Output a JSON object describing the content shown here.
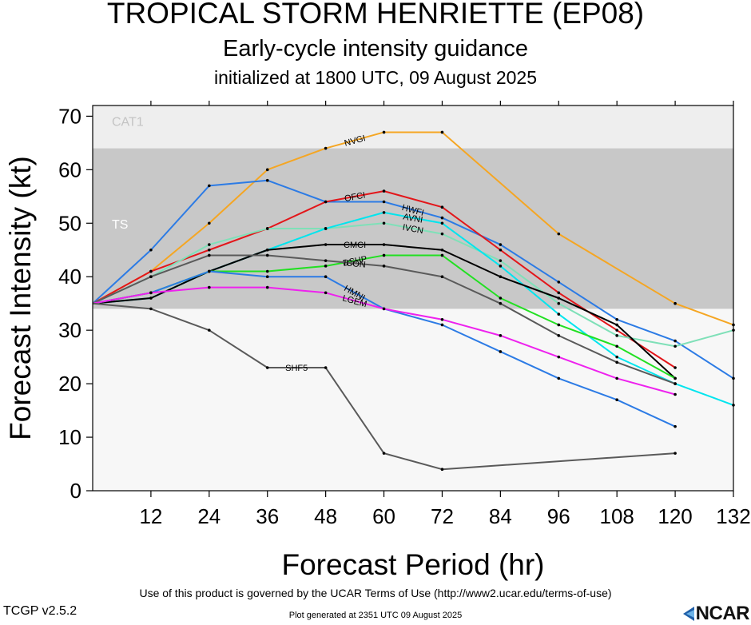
{
  "header": {
    "title": "TROPICAL STORM HENRIETTE (EP08)",
    "subtitle": "Early-cycle intensity guidance",
    "init": "initialized at 1800 UTC, 09 August 2025"
  },
  "footer": {
    "terms": "Use of this product is governed by the UCAR Terms of Use (http://www2.ucar.edu/terms-of-use)",
    "version": "TCGP v2.5.2",
    "generated": "Plot generated at 2351 UTC   09 August 2025",
    "logo": "NCAR"
  },
  "chart_data": {
    "type": "line",
    "xlabel": "Forecast Period (hr)",
    "ylabel": "Forecast Intensity (kt)",
    "xlim": [
      0,
      132
    ],
    "ylim": [
      0,
      72
    ],
    "xticks": [
      12,
      24,
      36,
      48,
      60,
      72,
      84,
      96,
      108,
      120,
      132
    ],
    "yticks": [
      0,
      10,
      20,
      30,
      40,
      50,
      60,
      70
    ],
    "grid": false,
    "bands": [
      {
        "label": "TS",
        "from": 34,
        "to": 64,
        "color": "#c8c8c8"
      },
      {
        "label": "CAT1",
        "from": 64,
        "to": 72,
        "color": "#eeeeee"
      }
    ],
    "below_band_color": "#f7f7f7",
    "series": [
      {
        "name": "NVGI",
        "color": "#f5a623",
        "x": [
          0,
          12,
          24,
          36,
          48,
          60,
          72,
          96,
          120,
          132
        ],
        "values": [
          35,
          41,
          50,
          60,
          64,
          67,
          67,
          48,
          35,
          31
        ]
      },
      {
        "name": "HWFI",
        "color": "#2c7be5",
        "x": [
          0,
          12,
          24,
          36,
          48,
          60,
          72,
          84,
          96,
          108,
          120,
          132
        ],
        "values": [
          35,
          45,
          57,
          58,
          54,
          54,
          51,
          46,
          39,
          32,
          28,
          21
        ]
      },
      {
        "name": "OFCI",
        "color": "#e3161a",
        "x": [
          0,
          12,
          24,
          36,
          48,
          60,
          72,
          84,
          96,
          108,
          120
        ],
        "values": [
          35,
          41,
          45,
          49,
          54,
          56,
          53,
          45,
          37,
          30,
          23
        ]
      },
      {
        "name": "IVCN",
        "color": "#7fe0b8",
        "x": [
          0,
          12,
          24,
          36,
          48,
          60,
          72,
          84,
          96,
          108,
          120,
          132
        ],
        "values": [
          35,
          40,
          46,
          49,
          49,
          50,
          48,
          43,
          35,
          29,
          27,
          30
        ]
      },
      {
        "name": "AVNI",
        "color": "#00e5ee",
        "x": [
          0,
          12,
          24,
          36,
          48,
          60,
          72,
          84,
          96,
          108,
          120,
          132
        ],
        "values": [
          35,
          36,
          41,
          45,
          49,
          52,
          50,
          42,
          33,
          25,
          20,
          16
        ]
      },
      {
        "name": "CMCI",
        "color": "#000000",
        "x": [
          0,
          12,
          24,
          36,
          48,
          60,
          72,
          84,
          96,
          108,
          120
        ],
        "values": [
          35,
          36,
          41,
          45,
          46,
          46,
          45,
          40,
          36,
          31,
          21
        ]
      },
      {
        "name": "DSHP",
        "color": "#22e022",
        "x": [
          0,
          12,
          24,
          36,
          48,
          60,
          72,
          84,
          96,
          108,
          120
        ],
        "values": [
          35,
          37,
          41,
          41,
          42,
          44,
          44,
          36,
          31,
          27,
          21
        ]
      },
      {
        "name": "ICON",
        "color": "#5a5a5a",
        "x": [
          0,
          12,
          24,
          36,
          48,
          60,
          72,
          84,
          96,
          108,
          120
        ],
        "values": [
          35,
          40,
          44,
          44,
          43,
          42,
          40,
          35,
          29,
          24,
          20
        ]
      },
      {
        "name": "HMNI",
        "color": "#2c7be5",
        "x": [
          0,
          12,
          24,
          36,
          48,
          60,
          72,
          84,
          96,
          108,
          120
        ],
        "values": [
          35,
          37,
          41,
          40,
          40,
          34,
          31,
          26,
          21,
          17,
          12
        ]
      },
      {
        "name": "LGEM",
        "color": "#ee22ee",
        "x": [
          0,
          12,
          24,
          36,
          48,
          60,
          72,
          84,
          96,
          108,
          120
        ],
        "values": [
          35,
          37,
          38,
          38,
          37,
          34,
          32,
          29,
          25,
          21,
          18
        ]
      },
      {
        "name": "SHF5",
        "color": "#5a5a5a",
        "x": [
          0,
          12,
          24,
          36,
          48,
          60,
          72,
          120
        ],
        "values": [
          35,
          34,
          30,
          23,
          23,
          7,
          4,
          7
        ]
      }
    ]
  }
}
